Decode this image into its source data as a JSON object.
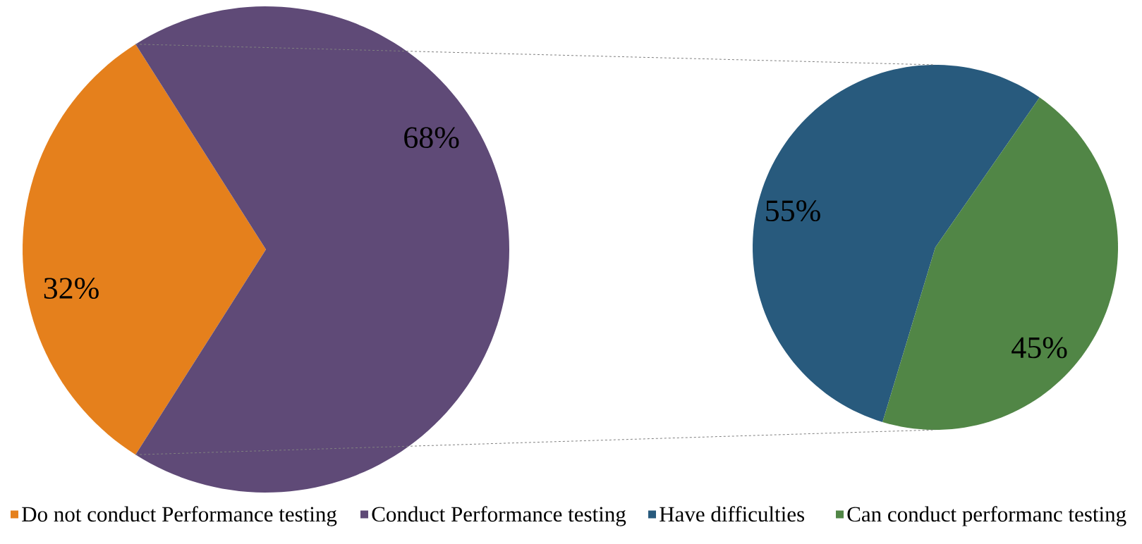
{
  "chart_data": [
    {
      "type": "pie",
      "categories": [
        "Do not conduct Performance testing",
        "Conduct Performance testing"
      ],
      "values": [
        32,
        68
      ],
      "colors": [
        "#e5801c",
        "#5f4a77"
      ],
      "value_labels": [
        "32%",
        "68%"
      ],
      "legend": "bottom"
    },
    {
      "type": "pie",
      "categories": [
        "Have difficulties",
        "Can conduct performanc testing"
      ],
      "values": [
        55,
        45
      ],
      "colors": [
        "#285a7d",
        "#518646"
      ],
      "value_labels": [
        "55%",
        "45%"
      ],
      "legend": "bottom"
    }
  ]
}
